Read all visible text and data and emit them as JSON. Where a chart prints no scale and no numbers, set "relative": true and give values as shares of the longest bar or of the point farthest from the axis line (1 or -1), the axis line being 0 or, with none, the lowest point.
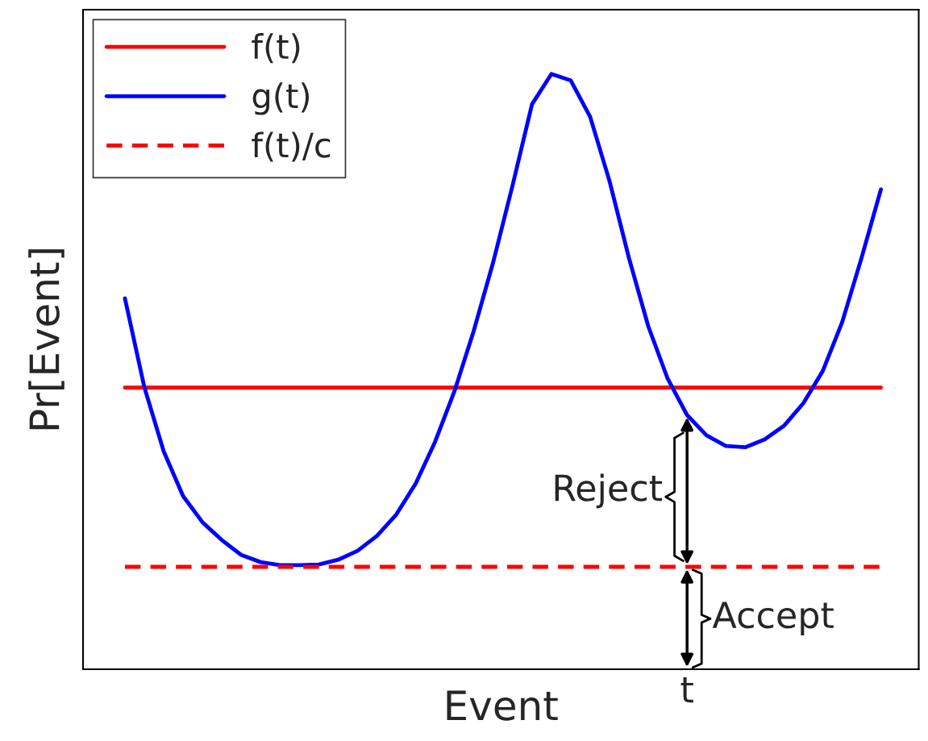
{
  "chart_data": {
    "type": "line",
    "relative": true,
    "xlabel": "Event",
    "ylabel": "Pr[Event]",
    "legend": "top left",
    "categories": [
      null,
      null,
      null,
      null,
      null,
      null,
      null,
      null,
      null,
      null,
      null,
      null,
      null,
      null,
      null,
      null,
      null,
      null,
      null,
      null,
      null,
      null,
      null,
      null,
      null,
      null,
      null,
      null,
      null,
      null,
      null,
      null,
      null,
      null,
      null,
      null,
      null,
      null,
      null,
      null
    ],
    "series": [
      {
        "name": "f(t)",
        "color": "#ff0000",
        "line_style": "solid",
        "values": [
          0.473,
          0.473,
          0.473,
          0.473,
          0.473,
          0.473,
          0.473,
          0.473,
          0.473,
          0.473,
          0.473,
          0.473,
          0.473,
          0.473,
          0.473,
          0.473,
          0.473,
          0.473,
          0.473,
          0.473,
          0.473,
          0.473,
          0.473,
          0.473,
          0.473,
          0.473,
          0.473,
          0.473,
          0.473,
          0.473,
          0.473,
          0.473,
          0.473,
          0.473,
          0.473,
          0.473,
          0.473,
          0.473,
          0.473,
          0.473
        ]
      },
      {
        "name": "g(t)",
        "color": "#0000ff",
        "line_style": "solid",
        "values": [
          0.623,
          0.474,
          0.366,
          0.291,
          0.247,
          0.217,
          0.192,
          0.18,
          0.175,
          0.175,
          0.176,
          0.184,
          0.199,
          0.224,
          0.26,
          0.312,
          0.382,
          0.467,
          0.569,
          0.684,
          0.813,
          0.949,
          1.0,
          0.989,
          0.928,
          0.82,
          0.691,
          0.576,
          0.488,
          0.427,
          0.393,
          0.375,
          0.373,
          0.386,
          0.409,
          0.447,
          0.501,
          0.583,
          0.691,
          0.806
        ]
      },
      {
        "name": "f(t)/c",
        "color": "#ff0000",
        "line_style": "dashed",
        "values": [
          0.172,
          0.172,
          0.172,
          0.172,
          0.172,
          0.172,
          0.172,
          0.172,
          0.172,
          0.172,
          0.172,
          0.172,
          0.172,
          0.172,
          0.172,
          0.172,
          0.172,
          0.172,
          0.172,
          0.172,
          0.172,
          0.172,
          0.172,
          0.172,
          0.172,
          0.172,
          0.172,
          0.172,
          0.172,
          0.172,
          0.172,
          0.172,
          0.172,
          0.172,
          0.172,
          0.172,
          0.172,
          0.172,
          0.172,
          0.172
        ]
      }
    ],
    "annotations": [
      "Reject",
      "Accept",
      "t"
    ]
  }
}
